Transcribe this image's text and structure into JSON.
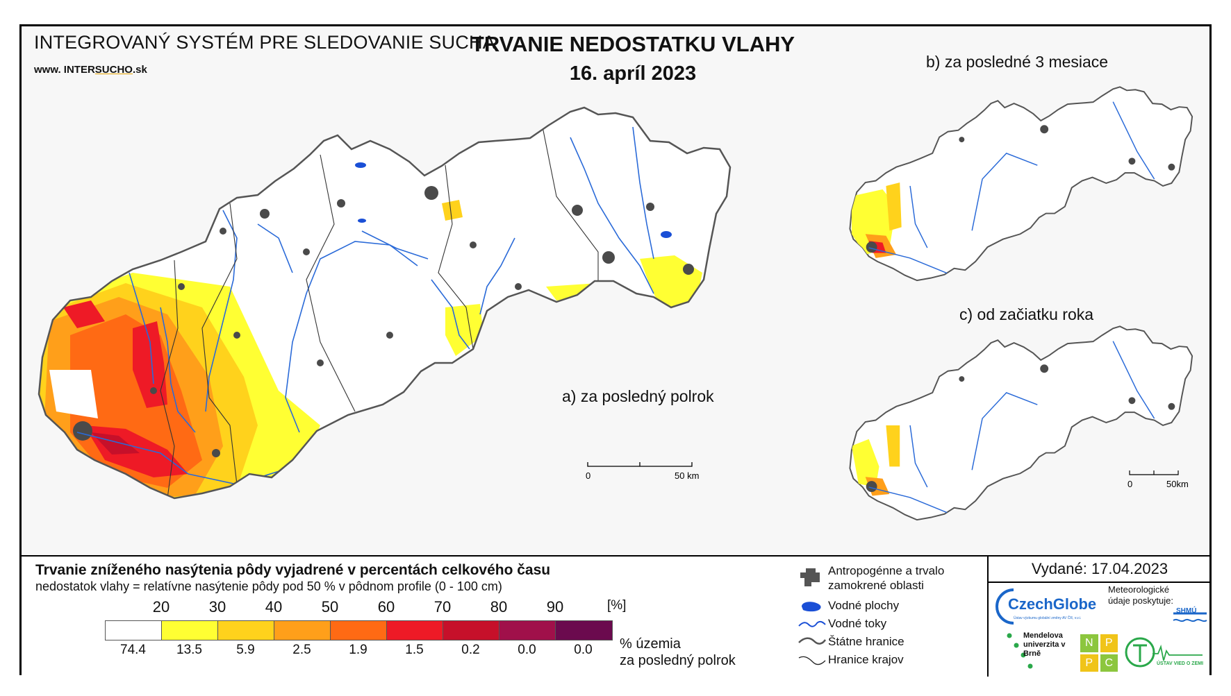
{
  "header": {
    "system_name": "INTEGROVANÝ SYSTÉM PRE SLEDOVANIE SUCHA",
    "website_prefix": "www.",
    "website_plain": "INTER",
    "website_underlined": "SUCHO",
    "website_suffix": ".sk",
    "title": "TRVANIE NEDOSTATKU VLAHY",
    "date": "16. apríl 2023"
  },
  "maps": {
    "a_caption": "a) za posledný polrok",
    "b_caption": "b) za posledné 3 mesiace",
    "c_caption": "c) od začiatku roka",
    "a_scale_start": "0",
    "a_scale_end": "50 km",
    "c_scale_start": "0",
    "c_scale_end": "50km"
  },
  "legend": {
    "title": "Trvanie zníženého nasýtenia pôdy vyjadrené v percentách celkového času",
    "subtitle": "nedostatok vlahy = relatívne nasýtenie pôdy pod 50 % v pôdnom profile (0 - 100 cm)",
    "ticks": [
      "20",
      "30",
      "40",
      "50",
      "60",
      "70",
      "80",
      "90"
    ],
    "unit": "[%]",
    "colors": [
      "#ffffff",
      "#ffff33",
      "#ffd21c",
      "#ff9f1a",
      "#ff6a14",
      "#ee1a26",
      "#c6102a",
      "#a0104a",
      "#6b0a4e"
    ],
    "percentages": [
      "74.4",
      "13.5",
      "5.9",
      "2.5",
      "1.9",
      "1.5",
      "0.2",
      "0.0",
      "0.0"
    ],
    "area_label_line1": "% územia",
    "area_label_line2": "za posledný polrok"
  },
  "symbols": {
    "urban": "Antropogénne a trvalo zamokrené oblasti",
    "water_bodies": "Vodné plochy",
    "rivers": "Vodné toky",
    "state_border": "Štátne hranice",
    "region_border": "Hranice krajov"
  },
  "issued": "Vydané: 17.04.2023",
  "logos": {
    "czechglobe": "CzechGlobe",
    "czechglobe_sub": "Ústav výzkumu globální změny AV ČR, v.v.i.",
    "met_data": "Meteorologické údaje poskytuje:",
    "shmu": "SHMÚ",
    "mendel": "Mendelova univerzita v Brně",
    "nppc": [
      "N",
      "P",
      "P",
      "C"
    ],
    "uvz": "ÚSTAV VIED O ZEMI"
  }
}
